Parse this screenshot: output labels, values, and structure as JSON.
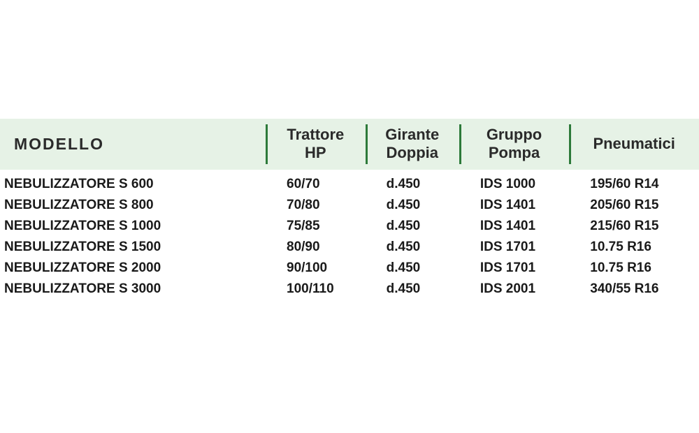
{
  "table": {
    "type": "table",
    "background_color": "#ffffff",
    "header_background": "#e6f2e6",
    "header_separator_color": "#2d7a3a",
    "text_color": "#1a1a1a",
    "header_fontsize": 22,
    "body_fontsize": 19,
    "font_family": "Arial",
    "columns": [
      {
        "label": "MODELLO",
        "width": "38%",
        "align": "left"
      },
      {
        "label": "Trattore\nHP",
        "align": "center"
      },
      {
        "label": "Girante\nDoppia",
        "align": "center"
      },
      {
        "label": "Gruppo\nPompa",
        "align": "center"
      },
      {
        "label": "Pneumatici",
        "align": "center"
      }
    ],
    "rows": [
      [
        "NEBULIZZATORE S 600",
        "60/70",
        "d.450",
        "IDS 1000",
        "195/60 R14"
      ],
      [
        "NEBULIZZATORE S 800",
        "70/80",
        "d.450",
        "IDS 1401",
        "205/60 R15"
      ],
      [
        "NEBULIZZATORE S 1000",
        "75/85",
        "d.450",
        "IDS 1401",
        "215/60 R15"
      ],
      [
        "NEBULIZZATORE S 1500",
        "80/90",
        "d.450",
        "IDS 1701",
        "10.75 R16"
      ],
      [
        "NEBULIZZATORE S 2000",
        "90/100",
        "d.450",
        "IDS 1701",
        "10.75 R16"
      ],
      [
        "NEBULIZZATORE S 3000",
        "100/110",
        "d.450",
        "IDS 2001",
        "340/55 R16"
      ]
    ]
  }
}
